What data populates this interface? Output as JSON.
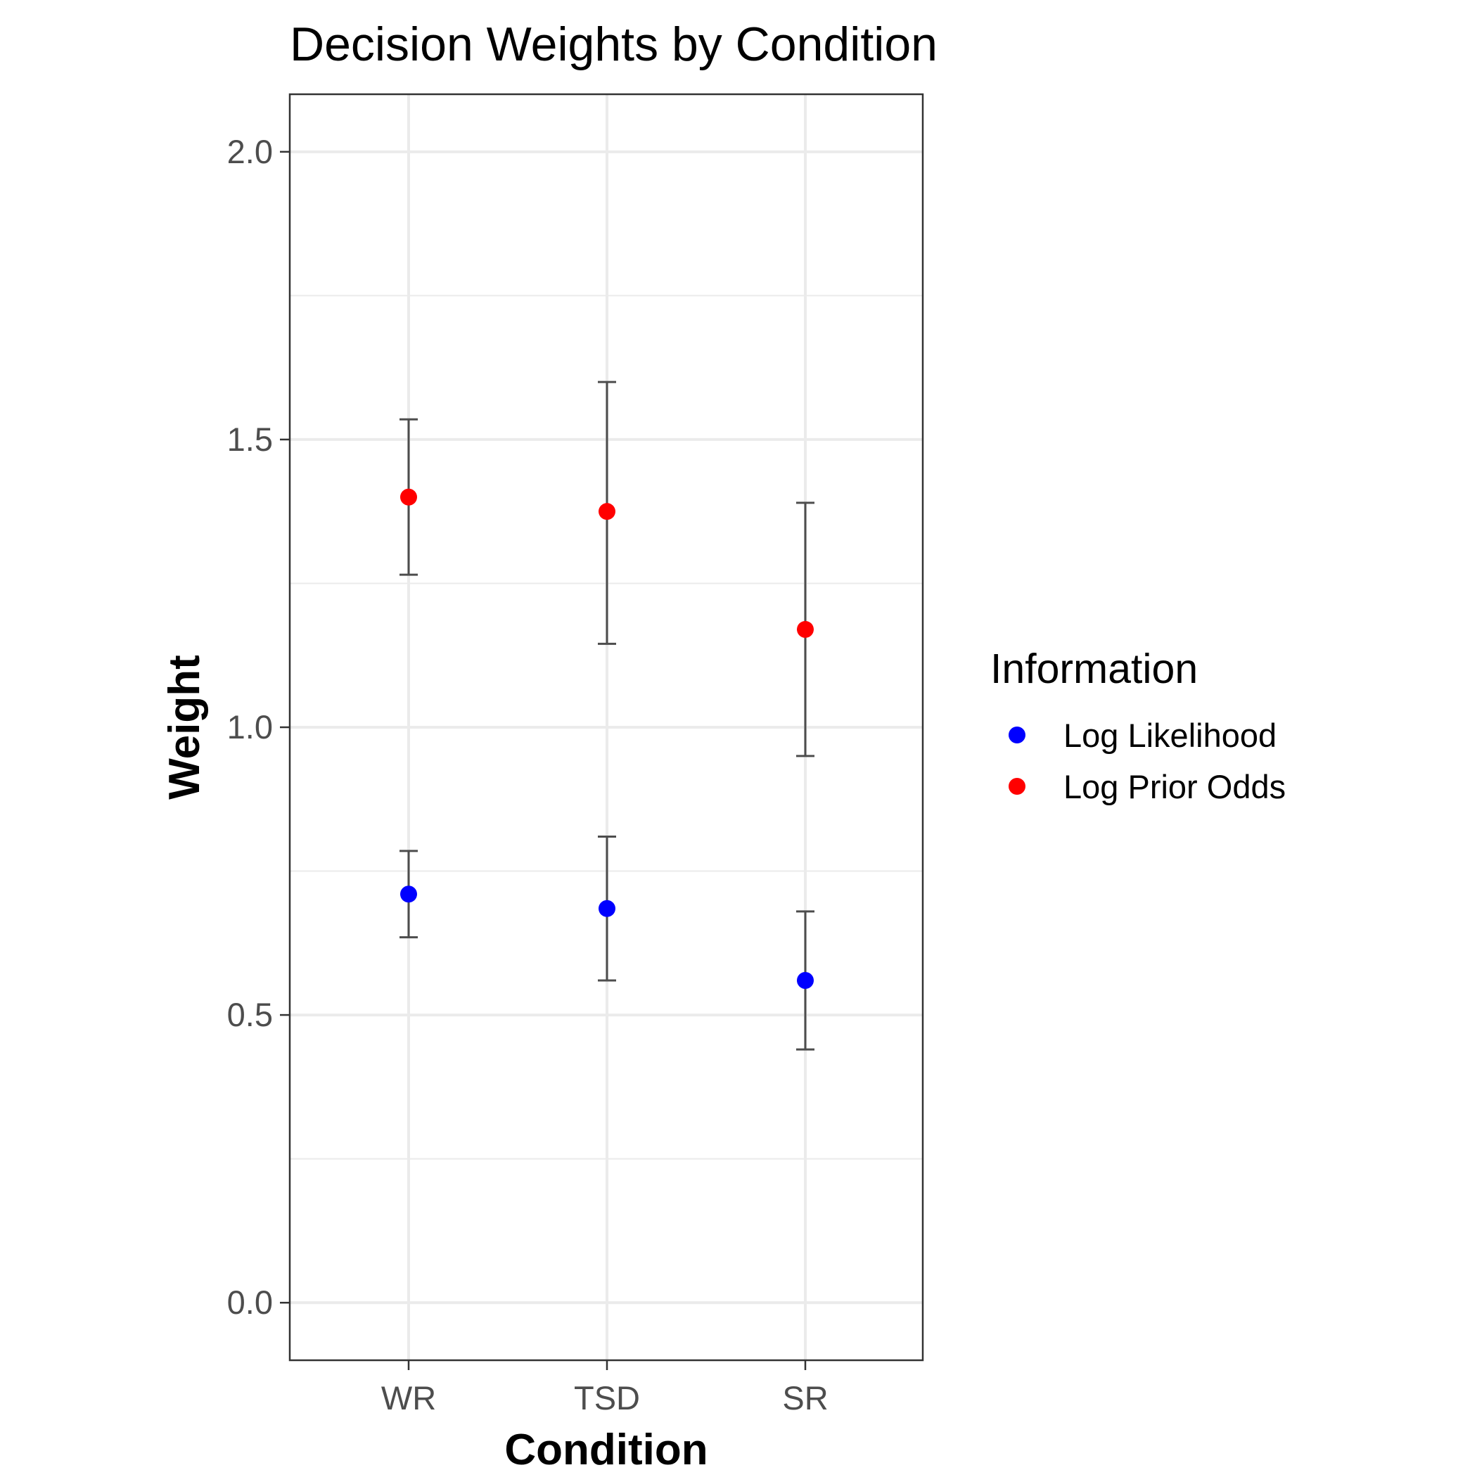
{
  "chart_data": {
    "type": "scatter",
    "title": "Decision Weights by Condition",
    "xlabel": "Condition",
    "ylabel": "Weight",
    "categories": [
      "WR",
      "TSD",
      "SR"
    ],
    "ylim": [
      -0.1,
      2.1
    ],
    "yticks": [
      0.0,
      0.5,
      1.0,
      1.5,
      2.0
    ],
    "ytick_labels": [
      "0.0",
      "0.5",
      "1.0",
      "1.5",
      "2.0"
    ],
    "grid": true,
    "legend": {
      "title": "Information",
      "position": "right"
    },
    "series": [
      {
        "name": "Log Likelihood",
        "color": "#0000FF",
        "values": [
          0.71,
          0.685,
          0.56
        ],
        "lower": [
          0.635,
          0.56,
          0.44
        ],
        "upper": [
          0.785,
          0.81,
          0.68
        ]
      },
      {
        "name": "Log Prior Odds",
        "color": "#FF0000",
        "values": [
          1.4,
          1.375,
          1.17
        ],
        "lower": [
          1.265,
          1.145,
          0.95
        ],
        "upper": [
          1.535,
          1.6,
          1.39
        ]
      }
    ]
  }
}
